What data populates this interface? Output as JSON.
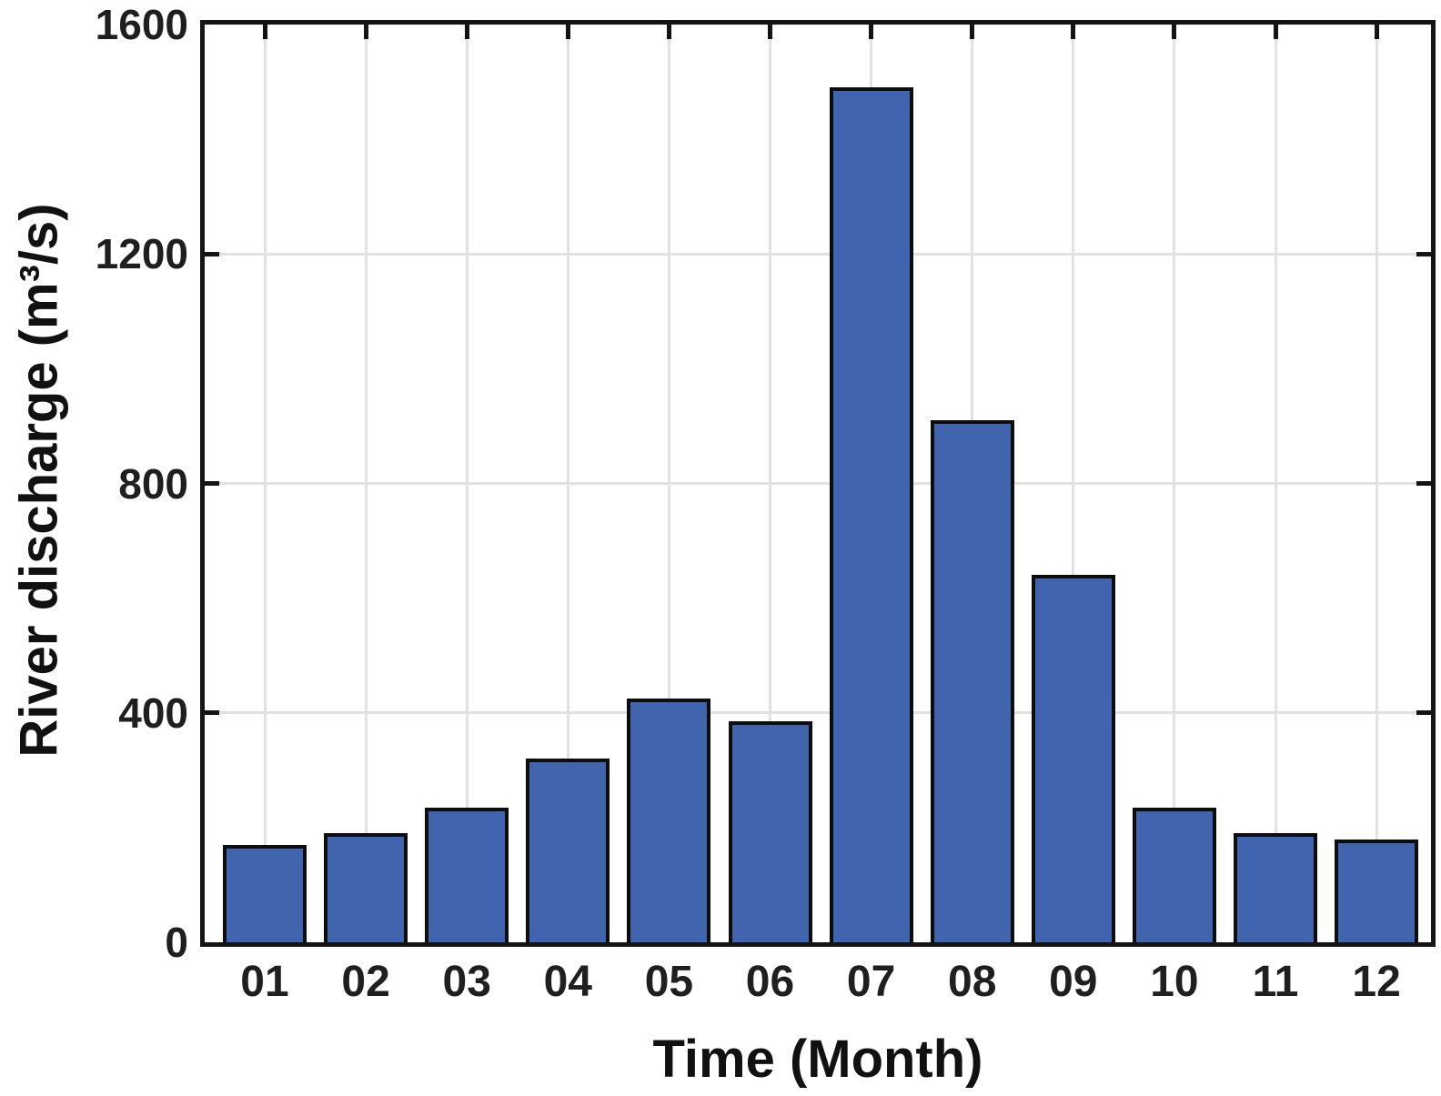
{
  "chart_data": {
    "type": "bar",
    "title": "",
    "categories": [
      "01",
      "02",
      "03",
      "04",
      "05",
      "06",
      "07",
      "08",
      "09",
      "10",
      "11",
      "12"
    ],
    "values": [
      170,
      190,
      235,
      320,
      425,
      385,
      1490,
      910,
      640,
      235,
      190,
      180
    ],
    "xlabel": "Time (Month)",
    "ylabel": "River discharge (m³/s)",
    "ylim": [
      0,
      1600
    ],
    "yticks": [
      0,
      400,
      800,
      1200,
      1600
    ],
    "grid": "on",
    "legend": "none",
    "colors": {
      "bar_fill": "#4164af",
      "bar_edge": "#0d0d0d",
      "axis": "#141414",
      "grid": "#e2e2e2",
      "tick_mark": "#141414",
      "tick_label": "#1f1f1f",
      "title_text": "#111111",
      "background": "#ffffff"
    }
  }
}
